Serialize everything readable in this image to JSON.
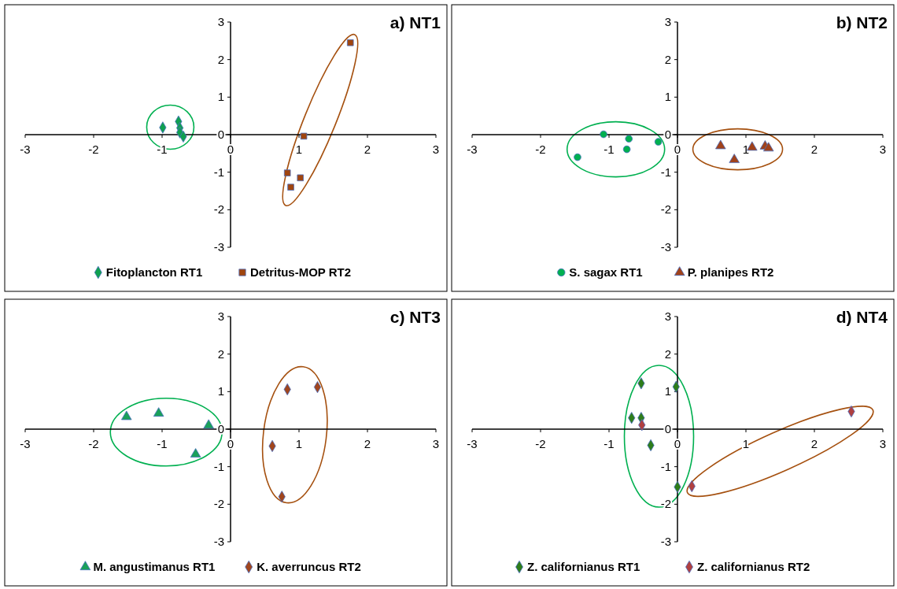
{
  "chart_data": [
    {
      "type": "scatter",
      "title": "a) NT1",
      "xlim": [
        -3,
        3
      ],
      "ylim": [
        -3,
        3
      ],
      "xticks": [
        -3,
        -2,
        -1,
        0,
        1,
        2,
        3
      ],
      "yticks": [
        -3,
        -2,
        -1,
        0,
        1,
        2,
        3
      ],
      "legend": "bottom",
      "grid": false,
      "series": [
        {
          "name": "Fitoplancton RT1",
          "color": "#10a050",
          "marker": "diamond",
          "x": [
            -0.99,
            -0.76,
            -0.74,
            -0.74,
            -0.69
          ],
          "values": [
            0.19,
            0.35,
            0.18,
            0.06,
            -0.05
          ]
        },
        {
          "name": "Detritus-MOP RT2",
          "color": "#a0450f",
          "marker": "square",
          "x": [
            1.75,
            1.07,
            0.83,
            0.88,
            1.02
          ],
          "values": [
            2.45,
            -0.04,
            -1.02,
            -1.4,
            -1.15
          ]
        }
      ]
    },
    {
      "type": "scatter",
      "title": "b) NT2",
      "xlim": [
        -3,
        3
      ],
      "ylim": [
        -3,
        3
      ],
      "xticks": [
        -3,
        -2,
        -1,
        0,
        1,
        2,
        3
      ],
      "yticks": [
        -3,
        -2,
        -1,
        0,
        1,
        2,
        3
      ],
      "legend": "bottom",
      "grid": false,
      "series": [
        {
          "name": "S. sagax RT1",
          "color": "#00b050",
          "marker": "circle",
          "x": [
            -1.46,
            -1.08,
            -0.71,
            -0.74,
            -0.28
          ],
          "values": [
            -0.6,
            0.01,
            -0.11,
            -0.39,
            -0.19
          ]
        },
        {
          "name": "P. planipes RT2",
          "color": "#a0421b",
          "marker": "triangle",
          "x": [
            0.63,
            0.83,
            1.09,
            1.28,
            1.33
          ],
          "values": [
            -0.3,
            -0.67,
            -0.34,
            -0.31,
            -0.36
          ]
        }
      ]
    },
    {
      "type": "scatter",
      "title": "c) NT3",
      "xlim": [
        -3,
        3
      ],
      "ylim": [
        -3,
        3
      ],
      "xticks": [
        -3,
        -2,
        -1,
        0,
        1,
        2,
        3
      ],
      "yticks": [
        -3,
        -2,
        -1,
        0,
        1,
        2,
        3
      ],
      "legend": "bottom",
      "grid": false,
      "series": [
        {
          "name": "M. angustimanus RT1",
          "color": "#1aa05a",
          "marker": "triangle",
          "x": [
            -1.52,
            -1.05,
            -0.51,
            -0.32
          ],
          "values": [
            0.33,
            0.42,
            -0.67,
            0.1
          ]
        },
        {
          "name": "K. averruncus RT2",
          "color": "#a0461e",
          "marker": "diamond",
          "x": [
            0.83,
            1.27,
            0.61,
            0.75
          ],
          "values": [
            1.06,
            1.12,
            -0.45,
            -1.8
          ]
        }
      ]
    },
    {
      "type": "scatter",
      "title": "d) NT4",
      "xlim": [
        -3,
        3
      ],
      "ylim": [
        -3,
        3
      ],
      "xticks": [
        -3,
        -2,
        -1,
        0,
        1,
        2,
        3
      ],
      "yticks": [
        -3,
        -2,
        -1,
        0,
        1,
        2,
        3
      ],
      "legend": "bottom",
      "grid": false,
      "series": [
        {
          "name": "Z. californianus RT1",
          "color": "#2e7d1a",
          "marker": "diamond",
          "x": [
            -0.53,
            -0.02,
            -0.67,
            -0.53,
            -0.39,
            0.0
          ],
          "values": [
            1.22,
            1.13,
            0.3,
            0.3,
            -0.43,
            -1.54
          ]
        },
        {
          "name": "Z. californianus RT2",
          "color": "#b04040",
          "marker": "diamond",
          "x": [
            -0.52,
            2.54,
            0.21
          ],
          "values": [
            0.11,
            0.47,
            -1.52
          ]
        }
      ]
    }
  ]
}
